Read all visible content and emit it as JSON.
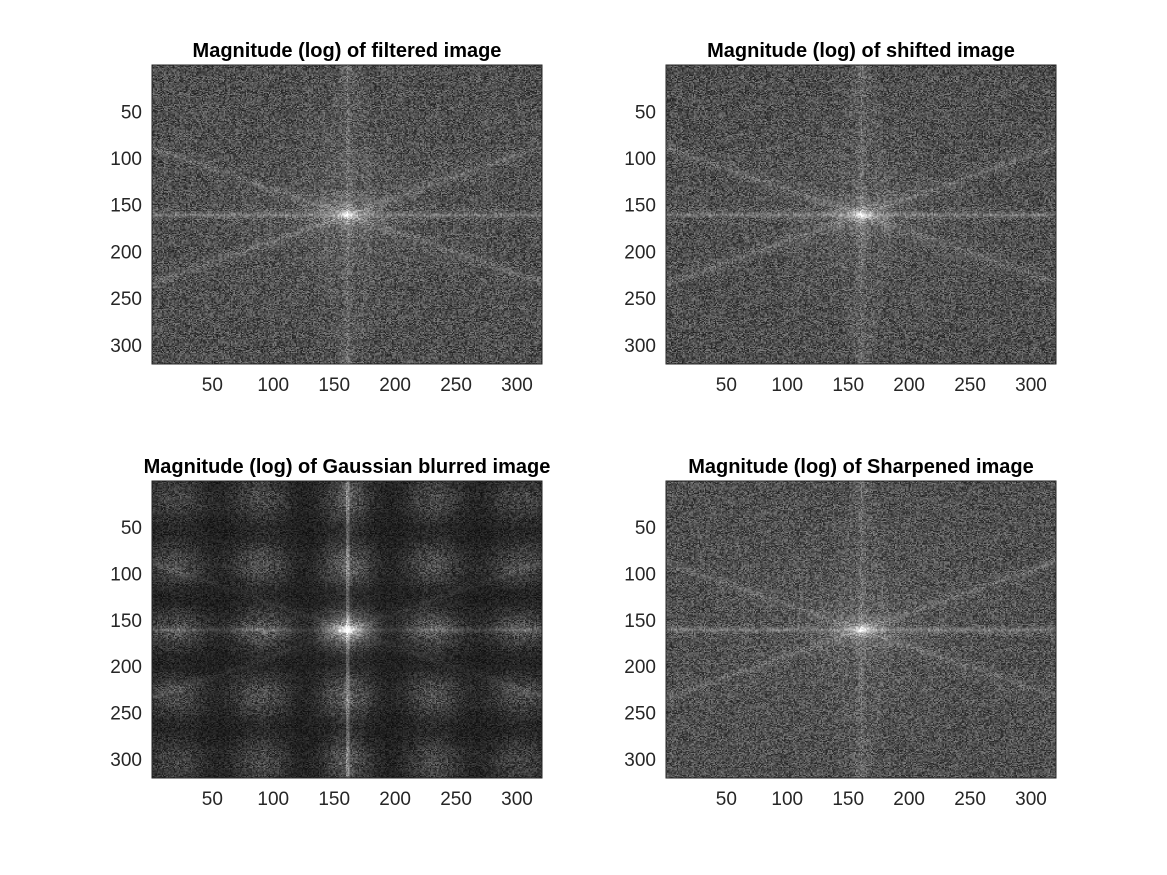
{
  "figure": {
    "background": "#ffffff",
    "axis_color": "#262626"
  },
  "chart_data": [
    {
      "type": "heatmap",
      "title": "Magnitude (log) of filtered image",
      "xlabel": "",
      "ylabel": "",
      "image_size": [
        320,
        320
      ],
      "xlim": [
        0.5,
        320.5
      ],
      "ylim": [
        0.5,
        320.5
      ],
      "y_direction": "reverse",
      "x_ticks": [
        50,
        100,
        150,
        200,
        250,
        300
      ],
      "x_tick_labels": [
        "50",
        "100",
        "150",
        "200",
        "250",
        "300"
      ],
      "y_ticks": [
        50,
        100,
        150,
        200,
        250,
        300
      ],
      "y_tick_labels": [
        "50",
        "100",
        "150",
        "200",
        "250",
        "300"
      ],
      "colormap": "gray",
      "spectrum_center": [
        161,
        161
      ],
      "variant": "plain"
    },
    {
      "type": "heatmap",
      "title": "Magnitude (log) of shifted image",
      "xlabel": "",
      "ylabel": "",
      "image_size": [
        320,
        320
      ],
      "xlim": [
        0.5,
        320.5
      ],
      "ylim": [
        0.5,
        320.5
      ],
      "y_direction": "reverse",
      "x_ticks": [
        50,
        100,
        150,
        200,
        250,
        300
      ],
      "x_tick_labels": [
        "50",
        "100",
        "150",
        "200",
        "250",
        "300"
      ],
      "y_ticks": [
        50,
        100,
        150,
        200,
        250,
        300
      ],
      "y_tick_labels": [
        "50",
        "100",
        "150",
        "200",
        "250",
        "300"
      ],
      "colormap": "gray",
      "spectrum_center": [
        161,
        161
      ],
      "variant": "plain"
    },
    {
      "type": "heatmap",
      "title": "Magnitude (log) of Gaussian blurred image",
      "xlabel": "",
      "ylabel": "",
      "image_size": [
        320,
        320
      ],
      "xlim": [
        0.5,
        320.5
      ],
      "ylim": [
        0.5,
        320.5
      ],
      "y_direction": "reverse",
      "x_ticks": [
        50,
        100,
        150,
        200,
        250,
        300
      ],
      "x_tick_labels": [
        "50",
        "100",
        "150",
        "200",
        "250",
        "300"
      ],
      "y_ticks": [
        50,
        100,
        150,
        200,
        250,
        300
      ],
      "y_tick_labels": [
        "50",
        "100",
        "150",
        "200",
        "250",
        "300"
      ],
      "colormap": "gray",
      "spectrum_center": [
        161,
        161
      ],
      "variant": "gaussian"
    },
    {
      "type": "heatmap",
      "title": "Magnitude (log) of Sharpened image",
      "xlabel": "",
      "ylabel": "",
      "image_size": [
        320,
        320
      ],
      "xlim": [
        0.5,
        320.5
      ],
      "ylim": [
        0.5,
        320.5
      ],
      "y_direction": "reverse",
      "x_ticks": [
        50,
        100,
        150,
        200,
        250,
        300
      ],
      "x_tick_labels": [
        "50",
        "100",
        "150",
        "200",
        "250",
        "300"
      ],
      "y_ticks": [
        50,
        100,
        150,
        200,
        250,
        300
      ],
      "y_tick_labels": [
        "50",
        "100",
        "150",
        "200",
        "250",
        "300"
      ],
      "colormap": "gray",
      "spectrum_center": [
        161,
        161
      ],
      "variant": "sharpened"
    }
  ]
}
